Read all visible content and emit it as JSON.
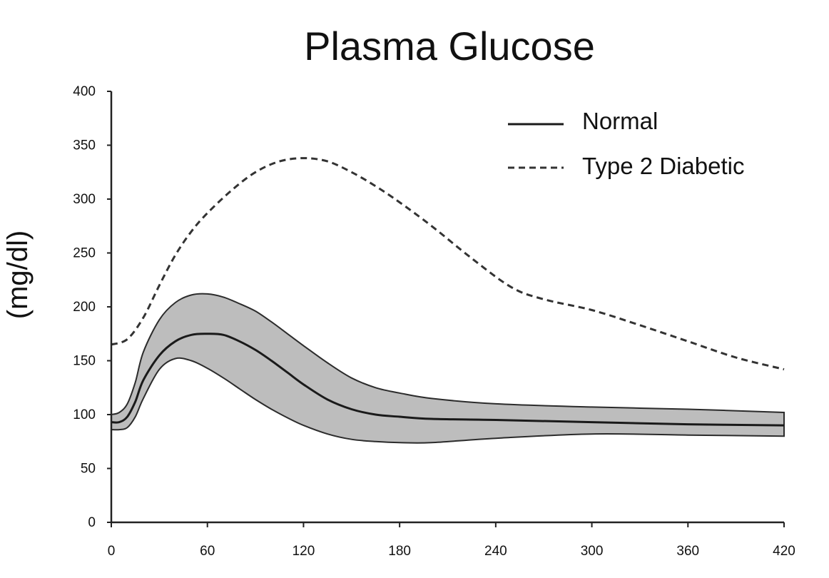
{
  "chart_data": {
    "type": "line",
    "title": "Plasma Glucose",
    "xlabel": "",
    "ylabel": "(mg/dl)",
    "xlim": [
      0,
      420
    ],
    "ylim": [
      0,
      400
    ],
    "x_ticks": [
      "0",
      "60",
      "120",
      "180",
      "240",
      "300",
      "360",
      "420"
    ],
    "y_ticks": [
      "0",
      "50",
      "100",
      "150",
      "200",
      "250",
      "300",
      "350",
      "400"
    ],
    "grid": false,
    "legend_position": "top-right",
    "legend": [
      {
        "label": "Normal",
        "style": "solid"
      },
      {
        "label": "Type 2 Diabetic",
        "style": "dashed"
      }
    ],
    "series": [
      {
        "name": "Normal",
        "style": "solid",
        "x": [
          0,
          5,
          10,
          15,
          20,
          30,
          40,
          50,
          60,
          70,
          80,
          90,
          100,
          110,
          120,
          135,
          150,
          165,
          180,
          200,
          240,
          300,
          360,
          420
        ],
        "values": [
          93,
          93,
          98,
          112,
          132,
          155,
          168,
          174,
          175,
          174,
          168,
          160,
          150,
          139,
          128,
          114,
          105,
          100,
          98,
          96,
          95,
          93,
          91,
          90
        ]
      },
      {
        "name": "Type 2 Diabetic",
        "style": "dashed",
        "x": [
          0,
          10,
          20,
          30,
          40,
          50,
          60,
          75,
          90,
          105,
          120,
          135,
          150,
          165,
          180,
          200,
          225,
          250,
          270,
          300,
          330,
          360,
          390,
          420
        ],
        "values": [
          165,
          170,
          190,
          220,
          248,
          270,
          287,
          308,
          325,
          335,
          338,
          335,
          325,
          312,
          297,
          275,
          245,
          218,
          207,
          197,
          183,
          168,
          153,
          142
        ]
      }
    ],
    "band": {
      "series": "Normal",
      "x": [
        0,
        5,
        10,
        15,
        20,
        30,
        40,
        50,
        60,
        70,
        80,
        90,
        100,
        110,
        120,
        135,
        150,
        165,
        180,
        200,
        240,
        300,
        360,
        420
      ],
      "upper": [
        100,
        102,
        110,
        130,
        158,
        188,
        204,
        211,
        212,
        209,
        203,
        196,
        186,
        175,
        164,
        148,
        134,
        125,
        120,
        115,
        110,
        107,
        105,
        102
      ],
      "lower": [
        86,
        86,
        88,
        98,
        115,
        142,
        152,
        150,
        143,
        134,
        124,
        114,
        105,
        97,
        90,
        82,
        77,
        75,
        74,
        74,
        78,
        82,
        81,
        80
      ]
    }
  }
}
